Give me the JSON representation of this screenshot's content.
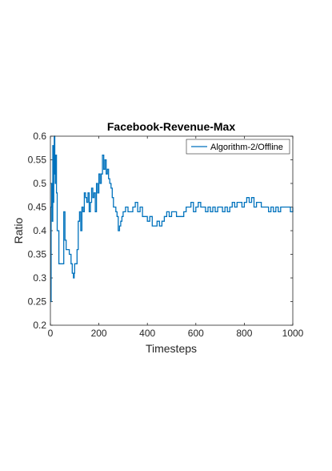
{
  "chart_data": {
    "type": "line",
    "title": "Facebook-Revenue-Max",
    "xlabel": "Timesteps",
    "ylabel": "Ratio",
    "xlim": [
      0,
      1000
    ],
    "ylim": [
      0.2,
      0.6
    ],
    "xticks": [
      0,
      200,
      400,
      600,
      800,
      1000
    ],
    "xtick_labels": [
      "0",
      "200",
      "400",
      "600",
      "800",
      "1000"
    ],
    "yticks": [
      0.2,
      0.25,
      0.3,
      0.35,
      0.4,
      0.45,
      0.5,
      0.55,
      0.6
    ],
    "ytick_labels": [
      "0.2",
      "0.25",
      "0.3",
      "0.35",
      "0.4",
      "0.45",
      "0.5",
      "0.55",
      "0.6"
    ],
    "grid": false,
    "legend_position": "top-right",
    "step": true,
    "series": [
      {
        "name": "Algorithm-2/Offline",
        "color": "#0072BD",
        "x": [
          1,
          3,
          5,
          8,
          10,
          12,
          14,
          16,
          18,
          20,
          22,
          25,
          28,
          30,
          35,
          38,
          40,
          45,
          50,
          55,
          60,
          65,
          70,
          75,
          78,
          80,
          85,
          90,
          95,
          98,
          100,
          105,
          110,
          115,
          120,
          125,
          130,
          135,
          140,
          145,
          150,
          155,
          160,
          165,
          170,
          175,
          180,
          185,
          190,
          195,
          200,
          205,
          210,
          215,
          220,
          225,
          230,
          235,
          240,
          245,
          250,
          255,
          260,
          265,
          270,
          275,
          280,
          285,
          290,
          295,
          300,
          310,
          320,
          330,
          340,
          350,
          360,
          370,
          380,
          390,
          400,
          410,
          420,
          430,
          440,
          450,
          460,
          470,
          480,
          490,
          500,
          510,
          520,
          530,
          540,
          550,
          560,
          570,
          580,
          590,
          600,
          610,
          620,
          630,
          640,
          650,
          660,
          670,
          680,
          690,
          700,
          710,
          720,
          730,
          740,
          750,
          760,
          770,
          780,
          790,
          800,
          810,
          820,
          830,
          840,
          850,
          860,
          870,
          880,
          890,
          900,
          910,
          920,
          930,
          940,
          950,
          960,
          970,
          980,
          990,
          1000
        ],
        "values": [
          0.25,
          0.45,
          0.5,
          0.42,
          0.58,
          0.46,
          0.52,
          0.6,
          0.55,
          0.5,
          0.56,
          0.48,
          0.4,
          0.4,
          0.33,
          0.33,
          0.33,
          0.33,
          0.33,
          0.44,
          0.38,
          0.36,
          0.36,
          0.36,
          0.35,
          0.35,
          0.33,
          0.31,
          0.3,
          0.31,
          0.33,
          0.33,
          0.36,
          0.42,
          0.44,
          0.4,
          0.45,
          0.44,
          0.48,
          0.47,
          0.46,
          0.48,
          0.44,
          0.46,
          0.49,
          0.47,
          0.48,
          0.44,
          0.5,
          0.48,
          0.52,
          0.5,
          0.52,
          0.56,
          0.53,
          0.55,
          0.52,
          0.53,
          0.51,
          0.5,
          0.49,
          0.47,
          0.45,
          0.45,
          0.44,
          0.43,
          0.4,
          0.41,
          0.42,
          0.43,
          0.44,
          0.45,
          0.44,
          0.44,
          0.45,
          0.46,
          0.44,
          0.45,
          0.43,
          0.43,
          0.42,
          0.43,
          0.41,
          0.41,
          0.42,
          0.41,
          0.42,
          0.43,
          0.44,
          0.43,
          0.44,
          0.44,
          0.43,
          0.43,
          0.43,
          0.44,
          0.45,
          0.45,
          0.46,
          0.44,
          0.45,
          0.46,
          0.45,
          0.45,
          0.44,
          0.45,
          0.44,
          0.45,
          0.44,
          0.45,
          0.45,
          0.44,
          0.45,
          0.44,
          0.45,
          0.46,
          0.45,
          0.46,
          0.46,
          0.45,
          0.46,
          0.47,
          0.46,
          0.47,
          0.45,
          0.46,
          0.46,
          0.45,
          0.45,
          0.45,
          0.44,
          0.45,
          0.44,
          0.45,
          0.44,
          0.45,
          0.45,
          0.45,
          0.45,
          0.44,
          0.45
        ]
      }
    ]
  }
}
